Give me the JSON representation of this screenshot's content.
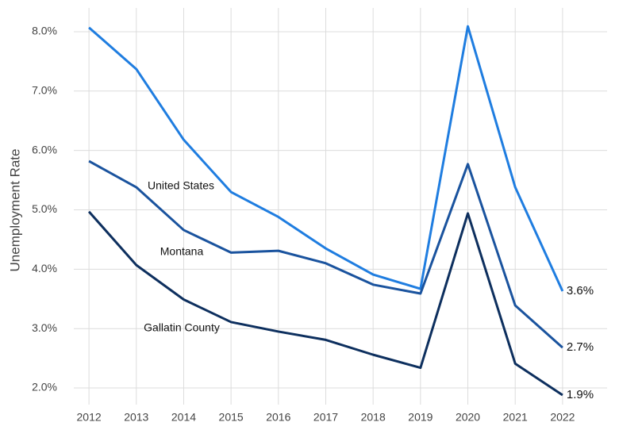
{
  "chart_data": {
    "type": "line",
    "y_label": "Unemployment Rate",
    "x": [
      2012,
      2013,
      2014,
      2015,
      2016,
      2017,
      2018,
      2019,
      2020,
      2021,
      2022
    ],
    "series": [
      {
        "name": "United States",
        "color": "#1f7de0",
        "values": [
          8.07,
          7.37,
          6.18,
          5.3,
          4.88,
          4.35,
          3.91,
          3.67,
          8.09,
          5.38,
          3.63
        ],
        "value_labels": [
          null,
          null,
          null,
          null,
          null,
          null,
          null,
          null,
          null,
          null,
          "3.6%"
        ]
      },
      {
        "name": "Montana",
        "color": "#1a539e",
        "values": [
          5.82,
          5.38,
          4.66,
          4.28,
          4.31,
          4.1,
          3.74,
          3.59,
          5.77,
          3.39,
          2.68
        ],
        "value_labels": [
          null,
          null,
          null,
          null,
          null,
          null,
          null,
          null,
          null,
          null,
          "2.7%"
        ]
      },
      {
        "name": "Gallatin County",
        "color": "#0d2f5e",
        "values": [
          4.97,
          4.07,
          3.49,
          3.11,
          2.95,
          2.81,
          2.56,
          2.34,
          4.94,
          2.41,
          1.88
        ],
        "value_labels": [
          null,
          null,
          null,
          null,
          null,
          null,
          null,
          null,
          null,
          null,
          "1.9%"
        ]
      }
    ],
    "xlim": [
      2011.68,
      2022.94
    ],
    "xticks": [
      2012,
      2013,
      2014,
      2015,
      2016,
      2017,
      2018,
      2019,
      2020,
      2021,
      2022
    ],
    "ylim": [
      1.72,
      8.4
    ],
    "yticks": [
      {
        "value": 2,
        "label": "2.0%"
      },
      {
        "value": 3,
        "label": "3.0%"
      },
      {
        "value": 4,
        "label": "4.0%"
      },
      {
        "value": 5,
        "label": "5.0%"
      },
      {
        "value": 6,
        "label": "6.0%"
      },
      {
        "value": 7,
        "label": "7.0%"
      },
      {
        "value": 8,
        "label": "8.0%"
      }
    ],
    "grid": true
  }
}
